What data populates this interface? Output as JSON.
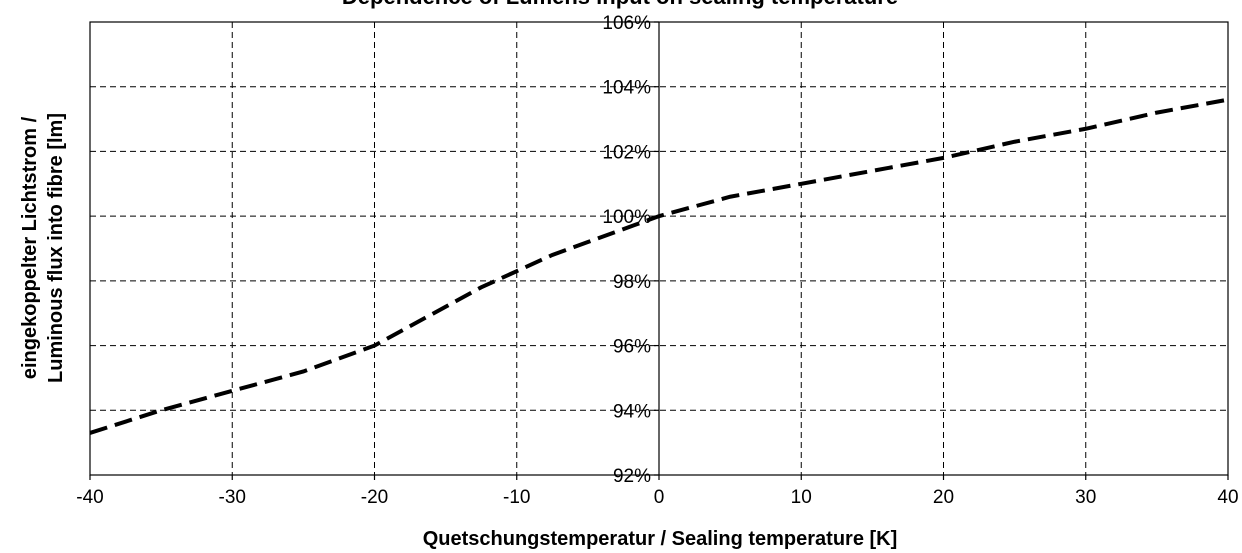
{
  "chart_data": {
    "type": "line",
    "title": "Dependence of Lumens input on sealing temperature",
    "xlabel": "Quetschungstemperatur / Sealing temperature [K]",
    "ylabel_lines": [
      "eingekoppelter Lichtstrom /",
      "Luminous flux into fibre [lm]"
    ],
    "xlim": [
      -40,
      40
    ],
    "ylim": [
      92,
      106
    ],
    "x_ticks": [
      -40,
      -30,
      -20,
      -10,
      0,
      10,
      20,
      30,
      40
    ],
    "x_tick_labels": [
      "-40",
      "-30",
      "-20",
      "-10",
      "0",
      "10",
      "20",
      "30",
      "40"
    ],
    "y_ticks": [
      92,
      94,
      96,
      98,
      100,
      102,
      104,
      106
    ],
    "y_tick_labels": [
      "92%",
      "94%",
      "96%",
      "98%",
      "100%",
      "102%",
      "104%",
      "106%"
    ],
    "grid": true,
    "legend": "none",
    "line_color": "#000000",
    "series": [
      {
        "x": [
          -40,
          -35,
          -30,
          -25,
          -20,
          -17.5,
          -15,
          -12.5,
          -10,
          -7.5,
          -5,
          -2.5,
          0,
          5,
          10,
          15,
          20,
          25,
          30,
          35,
          40
        ],
        "values": [
          93.3,
          94.0,
          94.6,
          95.2,
          96.0,
          96.6,
          97.2,
          97.8,
          98.3,
          98.8,
          99.2,
          99.6,
          100.0,
          100.6,
          101.0,
          101.4,
          101.8,
          102.3,
          102.7,
          103.2,
          103.6
        ]
      }
    ]
  }
}
